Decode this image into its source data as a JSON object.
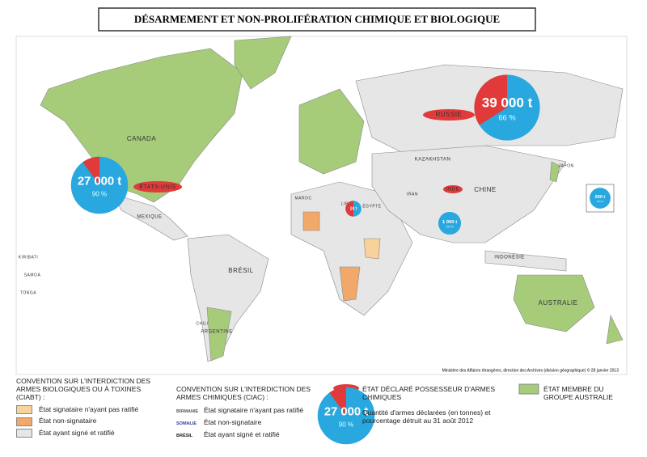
{
  "title": "DÉSARMEMENT ET NON-PROLIFÉRATION CHIMIQUE ET BIOLOGIQUE",
  "map_labels": [
    "CANADA",
    "ÉTATS-UNIS",
    "MEXIQUE",
    "BRÉSIL",
    "ARGENTINE",
    "CHILI",
    "RUSSIE",
    "KAZAKHSTAN",
    "CHINE",
    "INDE",
    "IRAN",
    "ÉGYPTE",
    "INDONÉSIE",
    "AUSTRALIE",
    "KIRIBATI",
    "SAMOA",
    "TONGA",
    "JAPON",
    "MAROC",
    "LIBYE"
  ],
  "stockpiles": [
    {
      "tonnes": 27000,
      "value_label": "27 000 t",
      "destroyed_pct": 90,
      "pct_label": "90 %"
    },
    {
      "tonnes": 39000,
      "value_label": "39 000 t",
      "destroyed_pct": 66,
      "pct_label": "66 %"
    },
    {
      "tonnes": 1000,
      "value_label": "1 000 t",
      "destroyed_pct": 100,
      "pct_label": "100 %"
    },
    {
      "tonnes": 600,
      "value_label": "600 t",
      "destroyed_pct": 100,
      "pct_label": "100 %"
    },
    {
      "tonnes": 24,
      "value_label": "24 t",
      "destroyed_pct": 50
    }
  ],
  "credit": "Ministère des Affaires étrangères, direction des Archives (division géographique) © 28 janvier 2013",
  "legend": {
    "ciabt": {
      "title": "CONVENTION SUR L'INTERDICTION DES ARMES BIOLOGIQUES OU À TOXINES (CIABT) :",
      "items": [
        "État signataire n'ayant pas ratifié",
        "État non-signataire",
        "État ayant signé et ratifié"
      ]
    },
    "ciac": {
      "title": "CONVENTION SUR L'INTERDICTION DES ARMES CHIMIQUES (CIAC) :",
      "examples": [
        "BIRMANIE",
        "SOMALIE",
        "BRÉSIL"
      ],
      "items": [
        "État signataire n'ayant pas ratifié",
        "État non-signataire",
        "État ayant signé et ratifié"
      ]
    },
    "possessor": "ÉTAT DÉCLARÉ POSSESSEUR D'ARMES CHIMIQUES",
    "quantity": {
      "example": {
        "tonnes": 27000,
        "value_label": "27 000 t",
        "destroyed_pct": 90,
        "pct_label": "90 %"
      },
      "text": "Quantité d'armes déclarées (en tonnes) et pourcentage détruit au 31 août 2012"
    },
    "australia": "ÉTAT MEMBRE DU GROUPE AUSTRALIE"
  }
}
